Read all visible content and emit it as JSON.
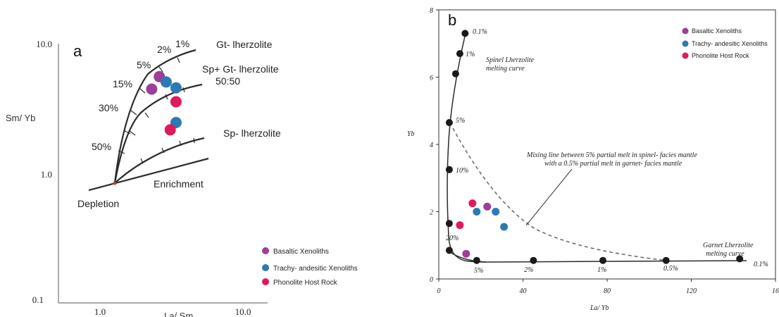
{
  "colors": {
    "basaltic": "#9b3f9a",
    "trachy": "#2a7ab5",
    "phonolite": "#e0195b",
    "curve": "#2b2b2b",
    "node": "#1a1a1a",
    "mixing": "#666666"
  },
  "chart_data": [
    {
      "panel": "a",
      "type": "scatter",
      "scale": "log-log",
      "xlim": [
        0.5,
        10.0
      ],
      "ylim": [
        0.1,
        10.0
      ],
      "xticks": [
        "1.0",
        "10.0"
      ],
      "yticks": [
        "10.0",
        "1.0",
        "0.1"
      ],
      "xlabel": "La/ Sm",
      "ylabel": "Sm/ Yb",
      "curve_labels": [
        "Gt- lherzolite",
        "Sp+ Gt- lherzolite\n50:50",
        "Sp- lherzolite"
      ],
      "percent_labels": [
        "1%",
        "2%",
        "5%",
        "15%",
        "30%",
        "50%"
      ],
      "trend_labels": [
        "Enrichment",
        "Depletion"
      ],
      "legend": [
        "Basaltic Xenoliths",
        "Trachy- andesitic Xenoliths",
        "Phonolite Host Rock"
      ],
      "series": [
        {
          "name": "Basaltic Xenoliths",
          "points": [
            [
              2.3,
              4.5
            ],
            [
              2.6,
              5.6
            ]
          ]
        },
        {
          "name": "Trachy- andesitic Xenoliths",
          "points": [
            [
              2.9,
              5.1
            ],
            [
              3.4,
              4.6
            ],
            [
              3.4,
              2.5
            ]
          ]
        },
        {
          "name": "Phonolite Host Rock",
          "points": [
            [
              3.4,
              3.6
            ],
            [
              3.1,
              2.2
            ]
          ]
        }
      ]
    },
    {
      "panel": "b",
      "type": "scatter",
      "xlim": [
        0,
        160
      ],
      "ylim": [
        0,
        8
      ],
      "xticks": [
        0,
        40,
        80,
        120,
        "16"
      ],
      "yticks": [
        0,
        2,
        4,
        6,
        8
      ],
      "xlabel": "La/ Yb",
      "ylabel": "Yb",
      "annotations": {
        "spinel_curve": "Spinel Lherzolite\nmelting curve",
        "garnet_curve": "Garnet Lherzolite\nmelting curve",
        "mixing_line": "Mixing line between 5% partial melt in spinel- facies mantle\nwith a 0.5% partial melt in garnet- facies mantle"
      },
      "spinel_percent_labels": [
        "0.1%",
        "1%",
        "5%",
        "10%",
        "20%"
      ],
      "garnet_percent_labels": [
        "5%",
        "2%",
        "1%",
        "0.5%",
        "0.1%"
      ],
      "legend": [
        "Basaltic Xenoliths",
        "Trachy- andesitic Xenoliths",
        "Phonolite Host Rock"
      ],
      "series": [
        {
          "name": "Basaltic Xenoliths",
          "points": [
            [
              23,
              2.15
            ],
            [
              13,
              0.75
            ]
          ]
        },
        {
          "name": "Trachy- andesitic Xenoliths",
          "points": [
            [
              18,
              2.0
            ],
            [
              27,
              2.0
            ],
            [
              31,
              1.55
            ]
          ]
        },
        {
          "name": "Phonolite Host Rock",
          "points": [
            [
              16,
              2.25
            ],
            [
              10,
              1.6
            ]
          ]
        }
      ],
      "spinel_curve_nodes": [
        [
          12.5,
          7.3
        ],
        [
          10,
          6.7
        ],
        [
          8,
          6.1
        ],
        [
          5,
          4.65
        ],
        [
          5,
          3.25
        ],
        [
          5,
          1.65
        ],
        [
          5,
          0.85
        ]
      ],
      "garnet_curve_nodes": [
        [
          18,
          0.55
        ],
        [
          45,
          0.55
        ],
        [
          78,
          0.55
        ],
        [
          108,
          0.55
        ],
        [
          143,
          0.6
        ]
      ]
    }
  ]
}
